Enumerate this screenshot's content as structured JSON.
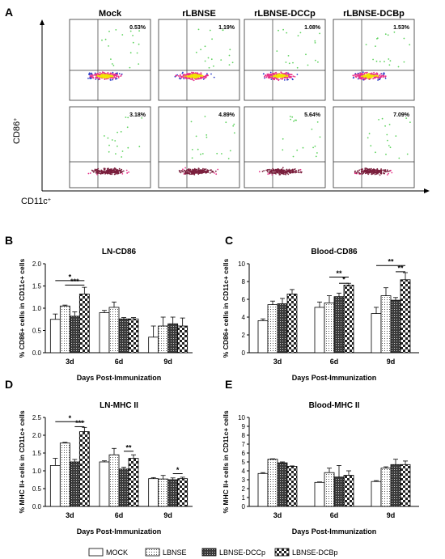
{
  "panel_letters": [
    "A",
    "B",
    "C",
    "D",
    "E"
  ],
  "flow": {
    "columns": [
      "Mock",
      "rLBNSE",
      "rLBNSE-DCCp",
      "rLBNSE-DCBp"
    ],
    "row1_percent": [
      "0.53%",
      "1.19%",
      "1.08%",
      "1.53%"
    ],
    "row2_percent": [
      "3.18%",
      "4.89%",
      "5.64%",
      "7.09%"
    ],
    "y_axis_label": "CD86",
    "x_axis_label": "CD11c",
    "colors": {
      "dense": "#f2e600",
      "mid": "#e8338a",
      "low": "#2a3cc8",
      "sparse": "#5fd35f",
      "maroon": "#7a1f3d"
    }
  },
  "xlabel_common": "Days Post-Immunization",
  "legend": [
    "MOCK",
    "LBNSE",
    "LBNSE-DCCp",
    "LBNSE-DCBp"
  ],
  "chart_data": [
    {
      "type": "bar",
      "title": "LN-CD86",
      "ylabel": "% CD86+ cells in CD11c+ cells",
      "xlabel": "Days Post-Immunization",
      "categories": [
        "3d",
        "6d",
        "9d"
      ],
      "ylim": [
        0,
        2.0
      ],
      "yticks": [
        "0.0",
        "0.5",
        "1.0",
        "1.5",
        "2.0"
      ],
      "series": [
        {
          "name": "MOCK",
          "values": [
            0.75,
            0.9,
            0.35
          ],
          "errors": [
            0.12,
            0.05,
            0.25
          ]
        },
        {
          "name": "LBNSE",
          "values": [
            1.05,
            1.02,
            0.6
          ],
          "errors": [
            0.02,
            0.12,
            0.2
          ]
        },
        {
          "name": "LBNSE-DCCp",
          "values": [
            0.82,
            0.76,
            0.65
          ],
          "errors": [
            0.1,
            0.03,
            0.15
          ]
        },
        {
          "name": "LBNSE-DCBp",
          "values": [
            1.32,
            0.76,
            0.6
          ],
          "errors": [
            0.15,
            0.03,
            0.18
          ]
        }
      ],
      "significance": [
        {
          "label": "*",
          "group": 0,
          "from": 0,
          "to": 3,
          "y": 1.62
        },
        {
          "label": "***",
          "group": 0,
          "from": 1,
          "to": 3,
          "y": 1.52
        }
      ]
    },
    {
      "type": "bar",
      "title": "Blood-CD86",
      "ylabel": "% CD86+ cells in CD11c+ cells",
      "xlabel": "Days Post-Immunization",
      "categories": [
        "3d",
        "6d",
        "9d"
      ],
      "ylim": [
        0,
        10
      ],
      "yticks": [
        "0",
        "2",
        "4",
        "6",
        "8",
        "10"
      ],
      "series": [
        {
          "name": "MOCK",
          "values": [
            3.6,
            5.1,
            4.4
          ],
          "errors": [
            0.2,
            0.6,
            0.7
          ]
        },
        {
          "name": "LBNSE",
          "values": [
            5.4,
            5.6,
            6.4
          ],
          "errors": [
            0.4,
            0.8,
            0.9
          ]
        },
        {
          "name": "LBNSE-DCCp",
          "values": [
            5.5,
            6.3,
            5.9
          ],
          "errors": [
            0.6,
            0.4,
            0.3
          ]
        },
        {
          "name": "LBNSE-DCBp",
          "values": [
            6.6,
            7.6,
            8.2
          ],
          "errors": [
            0.5,
            0.2,
            0.8
          ]
        }
      ],
      "significance": [
        {
          "label": "**",
          "group": 1,
          "from": 1,
          "to": 3,
          "y": 8.5
        },
        {
          "label": "*",
          "group": 1,
          "from": 2,
          "to": 3,
          "y": 7.8
        },
        {
          "label": "**",
          "group": 2,
          "from": 0,
          "to": 3,
          "y": 9.8
        },
        {
          "label": "**",
          "group": 2,
          "from": 2,
          "to": 3,
          "y": 9.1
        }
      ]
    },
    {
      "type": "bar",
      "title": "LN-MHC II",
      "ylabel": "% MHC II+ cells in CD11c+ cells",
      "xlabel": "Days Post-Immunization",
      "categories": [
        "3d",
        "6d",
        "9d"
      ],
      "ylim": [
        0,
        2.5
      ],
      "yticks": [
        "0.0",
        "0.5",
        "1.0",
        "1.5",
        "2.0",
        "2.5"
      ],
      "series": [
        {
          "name": "MOCK",
          "values": [
            1.15,
            1.25,
            0.78
          ],
          "errors": [
            0.2,
            0.03,
            0.03
          ]
        },
        {
          "name": "LBNSE",
          "values": [
            1.78,
            1.45,
            0.77
          ],
          "errors": [
            0.02,
            0.18,
            0.1
          ]
        },
        {
          "name": "LBNSE-DCCp",
          "values": [
            1.25,
            1.05,
            0.75
          ],
          "errors": [
            0.07,
            0.05,
            0.05
          ]
        },
        {
          "name": "LBNSE-DCBp",
          "values": [
            2.1,
            1.35,
            0.78
          ],
          "errors": [
            0.12,
            0.1,
            0.04
          ]
        }
      ],
      "significance": [
        {
          "label": "*",
          "group": 0,
          "from": 0,
          "to": 3,
          "y": 2.38
        },
        {
          "label": "***",
          "group": 0,
          "from": 2,
          "to": 3,
          "y": 2.24
        },
        {
          "label": "**",
          "group": 1,
          "from": 2,
          "to": 3,
          "y": 1.55
        },
        {
          "label": "*",
          "group": 2,
          "from": 2,
          "to": 3,
          "y": 0.92
        }
      ]
    },
    {
      "type": "bar",
      "title": "Blood-MHC II",
      "ylabel": "% MHC II+ cells in CD11c+ cells",
      "xlabel": "Days Post-Immunization",
      "categories": [
        "3d",
        "6d",
        "9d"
      ],
      "ylim": [
        0,
        10
      ],
      "yticks": [
        "0",
        "1",
        "2",
        "3",
        "4",
        "5",
        "6",
        "7",
        "8",
        "9",
        "10"
      ],
      "series": [
        {
          "name": "MOCK",
          "values": [
            3.7,
            2.7,
            2.8
          ],
          "errors": [
            0.1,
            0.05,
            0.1
          ]
        },
        {
          "name": "LBNSE",
          "values": [
            5.3,
            3.8,
            4.3
          ],
          "errors": [
            0.05,
            0.5,
            0.15
          ]
        },
        {
          "name": "LBNSE-DCCp",
          "values": [
            4.9,
            3.3,
            4.7
          ],
          "errors": [
            0.1,
            1.3,
            0.6
          ]
        },
        {
          "name": "LBNSE-DCBp",
          "values": [
            4.5,
            3.5,
            4.7
          ],
          "errors": [
            0.05,
            0.5,
            0.4
          ]
        }
      ],
      "significance": []
    }
  ]
}
